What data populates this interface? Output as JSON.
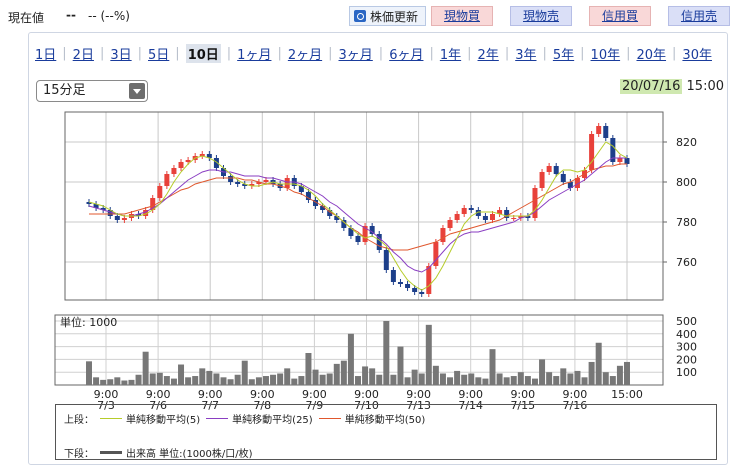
{
  "quote": {
    "label": "現在値",
    "price": "--",
    "change": "-- (--%)"
  },
  "toolbar": {
    "update_label": "株価更新",
    "spot_buy": "現物買",
    "spot_sell": "現物売",
    "margin_buy": "信用買",
    "margin_sell": "信用売"
  },
  "periods": [
    "1日",
    "2日",
    "3日",
    "5日",
    "10日",
    "1ヶ月",
    "2ヶ月",
    "3ヶ月",
    "6ヶ月",
    "1年",
    "2年",
    "3年",
    "5年",
    "10年",
    "20年",
    "30年"
  ],
  "active_period": "10日",
  "interval": {
    "selected": "15分足"
  },
  "timestamp": {
    "date": "20/07/16",
    "time": "15:00"
  },
  "volume_unit_label": "単位: 1000",
  "legend": {
    "upper_label": "上段：",
    "lower_label": "下段：",
    "ma5": "単純移動平均(5)",
    "ma25": "単純移動平均(25)",
    "ma50": "単純移動平均(50)",
    "volume": "出来高 単位:(1000株/口/枚)"
  },
  "colors": {
    "up": "#e8413a",
    "down": "#1d3f8a",
    "ma5": "#b6cc2a",
    "ma25": "#8a3ec2",
    "ma50": "#e0572d",
    "volume": "#777777"
  },
  "chart_data": {
    "type": "candlestick",
    "price_axis": {
      "ticks": [
        760,
        780,
        800,
        820
      ],
      "ylim": [
        741,
        835
      ]
    },
    "volume_axis": {
      "ticks": [
        100,
        200,
        300,
        400,
        500
      ],
      "ylim": [
        0,
        500
      ]
    },
    "x_ticks": [
      {
        "time": "9:00",
        "date": "7/3"
      },
      {
        "time": "9:00",
        "date": "7/6"
      },
      {
        "time": "9:00",
        "date": "7/7"
      },
      {
        "time": "9:00",
        "date": "7/8"
      },
      {
        "time": "9:00",
        "date": "7/9"
      },
      {
        "time": "9:00",
        "date": "7/10"
      },
      {
        "time": "9:00",
        "date": "7/13"
      },
      {
        "time": "9:00",
        "date": "7/14"
      },
      {
        "time": "9:00",
        "date": "7/15"
      },
      {
        "time": "9:00",
        "date": "7/16"
      },
      {
        "time": "15:00",
        "date": ""
      }
    ],
    "close": [
      789,
      787,
      786,
      783,
      781,
      782,
      784,
      783,
      786,
      792,
      798,
      804,
      807,
      810,
      811,
      813,
      814,
      812,
      807,
      803,
      800,
      799,
      798,
      799,
      800,
      801,
      799,
      797,
      802,
      798,
      795,
      791,
      788,
      786,
      783,
      781,
      777,
      773,
      770,
      778,
      774,
      766,
      756,
      750,
      749,
      747,
      745,
      744,
      758,
      770,
      777,
      781,
      784,
      787,
      786,
      783,
      781,
      784,
      786,
      782,
      782,
      783,
      782,
      797,
      805,
      808,
      804,
      800,
      797,
      802,
      806,
      824,
      828,
      822,
      810,
      812,
      809
    ],
    "ma5": [
      790,
      789,
      788,
      786,
      784,
      783,
      783,
      783,
      784,
      786,
      789,
      794,
      800,
      805,
      809,
      812,
      813,
      812,
      810,
      807,
      804,
      801,
      799,
      798,
      798,
      799,
      800,
      799,
      799,
      799,
      798,
      796,
      793,
      789,
      786,
      783,
      780,
      777,
      774,
      772,
      773,
      771,
      768,
      762,
      756,
      751,
      748,
      746,
      748,
      752,
      758,
      765,
      772,
      779,
      783,
      785,
      785,
      785,
      784,
      783,
      783,
      783,
      783,
      786,
      791,
      797,
      803,
      806,
      806,
      805,
      806,
      810,
      815,
      820,
      818,
      814,
      812
    ],
    "ma25": [
      788,
      787,
      786,
      785,
      784,
      783,
      783,
      784,
      785,
      787,
      789,
      792,
      795,
      798,
      801,
      803,
      805,
      806,
      806,
      805,
      805,
      804,
      803,
      803,
      803,
      802,
      802,
      801,
      800,
      800,
      799,
      797,
      795,
      793,
      790,
      788,
      785,
      782,
      779,
      777,
      775,
      772,
      769,
      765,
      762,
      758,
      756,
      755,
      757,
      761,
      765,
      769,
      772,
      774,
      775,
      775,
      776,
      777,
      778,
      779,
      780,
      782,
      783,
      785,
      788,
      791,
      793,
      795,
      797,
      799,
      801,
      804,
      807,
      810,
      812,
      812,
      812
    ],
    "ma50": [
      784,
      784,
      784,
      784,
      784,
      784,
      785,
      786,
      787,
      788,
      790,
      792,
      794,
      796,
      797,
      799,
      800,
      801,
      802,
      802,
      802,
      802,
      801,
      801,
      800,
      799,
      799,
      798,
      797,
      795,
      794,
      792,
      790,
      788,
      785,
      783,
      780,
      777,
      775,
      772,
      770,
      768,
      767,
      766,
      766,
      766,
      767,
      768,
      769,
      770,
      772,
      774,
      775,
      776,
      777,
      778,
      779,
      780,
      781,
      783,
      785,
      787,
      789,
      791,
      793,
      795,
      797,
      799,
      800,
      802,
      804,
      806,
      807,
      808,
      808,
      809,
      809
    ],
    "volume": [
      185,
      60,
      40,
      45,
      60,
      35,
      40,
      80,
      260,
      90,
      95,
      70,
      50,
      160,
      60,
      70,
      130,
      110,
      90,
      60,
      45,
      80,
      190,
      45,
      60,
      70,
      80,
      90,
      130,
      50,
      70,
      250,
      120,
      80,
      90,
      165,
      190,
      400,
      70,
      145,
      130,
      80,
      500,
      80,
      300,
      60,
      120,
      90,
      470,
      150,
      90,
      60,
      110,
      80,
      90,
      60,
      50,
      280,
      90,
      60,
      70,
      100,
      70,
      50,
      200,
      100,
      70,
      130,
      90,
      110,
      60,
      180,
      330,
      100,
      70,
      150,
      180
    ],
    "series": [
      {
        "name": "単純移動平均(5)"
      },
      {
        "name": "単純移動平均(25)"
      },
      {
        "name": "単純移動平均(50)"
      }
    ]
  }
}
